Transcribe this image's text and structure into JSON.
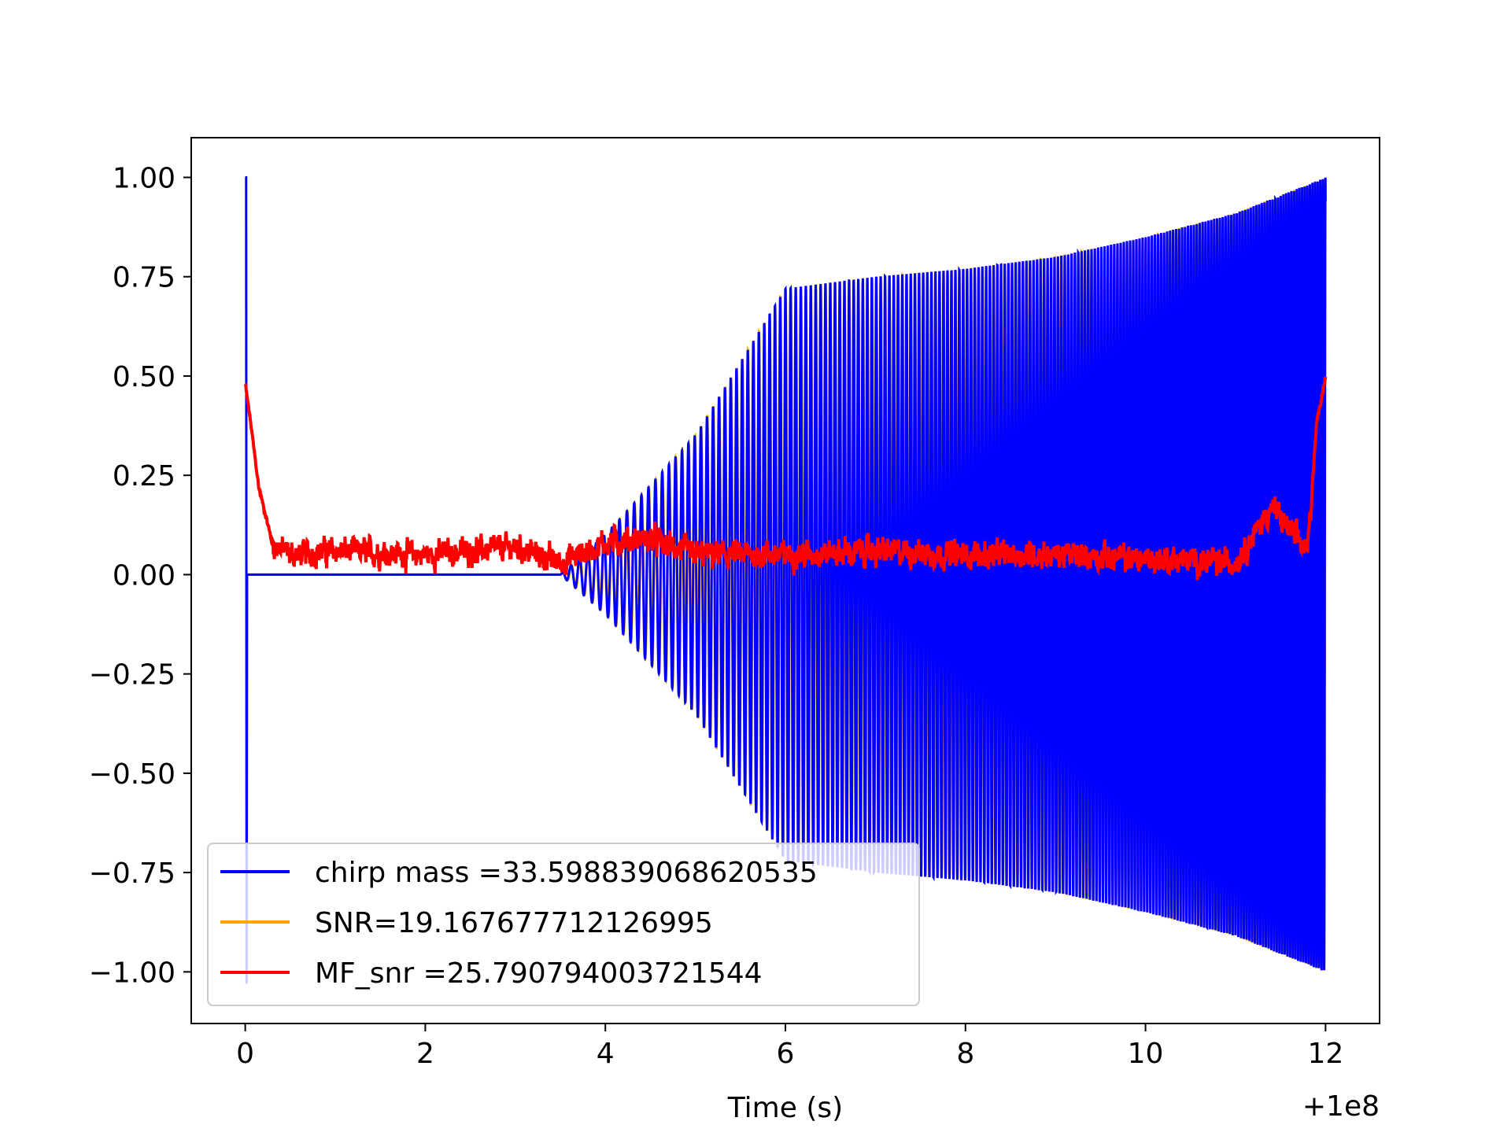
{
  "chart_data": {
    "type": "line",
    "title": "",
    "xlabel": "Time (s)",
    "ylabel": "",
    "x_offset_label": "+1e8",
    "xlim": [
      -0.6,
      12.6
    ],
    "ylim": [
      -1.13,
      1.1
    ],
    "x_ticks": [
      0,
      2,
      4,
      6,
      8,
      10,
      12
    ],
    "x_tick_labels": [
      "0",
      "2",
      "4",
      "6",
      "8",
      "10",
      "12"
    ],
    "y_ticks": [
      1.0,
      0.75,
      0.5,
      0.25,
      0.0,
      -0.25,
      -0.5,
      -0.75,
      -1.0
    ],
    "y_tick_labels": [
      "1.00",
      "0.75",
      "0.50",
      "0.25",
      "0.00",
      "−0.25",
      "−0.50",
      "−0.75",
      "−1.00"
    ],
    "grid": false,
    "legend_position": "lower-left",
    "series": [
      {
        "name": "chirp mass =33.598839068620535",
        "color": "#0000ff",
        "description_points": {
          "x": [
            0.0,
            0.02,
            3.5,
            4.0,
            5.0,
            6.0,
            7.0,
            8.0,
            9.0,
            10.0,
            11.0,
            12.0
          ],
          "envelope": [
            1.0,
            1.0,
            0.0,
            0.1,
            0.35,
            0.72,
            0.75,
            0.77,
            0.8,
            0.85,
            0.91,
            1.0
          ]
        }
      },
      {
        "name": "SNR=19.167677712126995",
        "color": "#ffa500",
        "description_points": {
          "x": [
            0.0,
            3.5,
            4.0,
            5.0,
            6.0,
            7.0,
            8.0,
            9.0,
            10.0,
            11.0,
            12.0
          ],
          "envelope": [
            0.0,
            0.0,
            0.1,
            0.35,
            0.72,
            0.75,
            0.77,
            0.8,
            0.85,
            0.91,
            1.0
          ]
        }
      },
      {
        "name": "MF_snr =25.790794003721544",
        "color": "#ff0000",
        "description_points": {
          "x": [
            0.0,
            0.05,
            0.15,
            0.3,
            0.5,
            1.0,
            2.0,
            3.0,
            3.5,
            4.0,
            4.5,
            5.0,
            6.0,
            7.0,
            8.0,
            9.0,
            10.0,
            11.0,
            11.4,
            11.8,
            11.9,
            12.0
          ],
          "y": [
            0.48,
            0.4,
            0.22,
            0.08,
            0.05,
            0.06,
            0.05,
            0.07,
            0.03,
            0.08,
            0.09,
            0.05,
            0.05,
            0.06,
            0.05,
            0.05,
            0.04,
            0.03,
            0.17,
            0.06,
            0.38,
            0.5
          ]
        }
      }
    ]
  }
}
